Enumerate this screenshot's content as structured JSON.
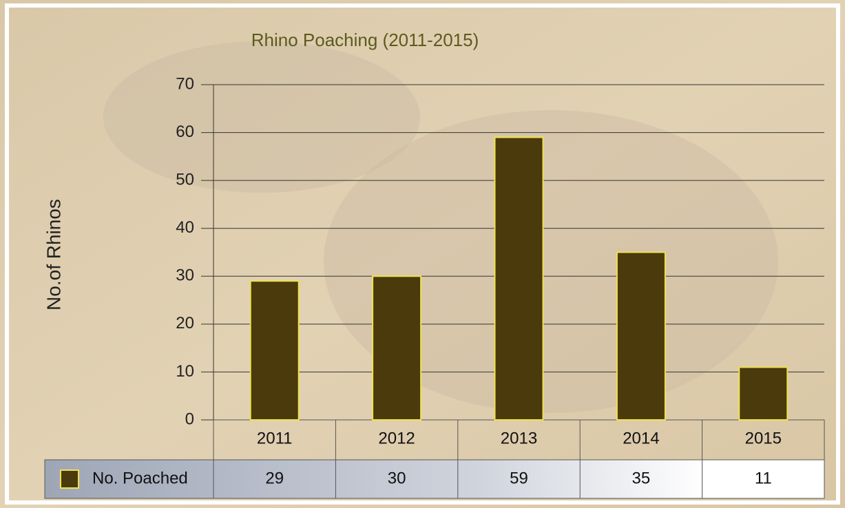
{
  "chart_data": {
    "type": "bar",
    "title": "Rhino Poaching (2011-2015)",
    "ylabel": "No.of Rhinos",
    "categories": [
      "2011",
      "2012",
      "2013",
      "2014",
      "2015"
    ],
    "series": [
      {
        "name": "No. Poached",
        "color": "#4a3a0c",
        "edge_color": "#f0e050",
        "values": [
          29,
          30,
          59,
          35,
          11
        ]
      }
    ],
    "ylim": [
      0,
      70
    ],
    "yticks": [
      0,
      10,
      20,
      30,
      40,
      50,
      60,
      70
    ],
    "grid": true,
    "data_table": true
  }
}
